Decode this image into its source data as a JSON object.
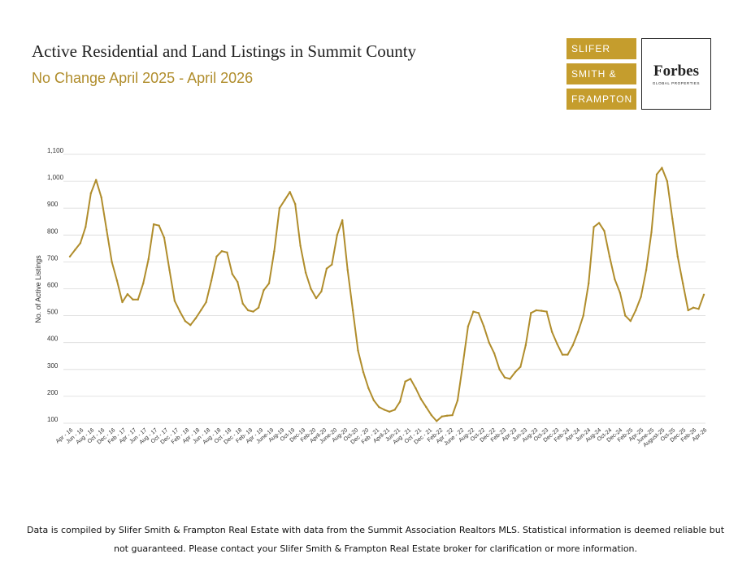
{
  "header": {
    "title": "Active Residential and Land Listings in Summit County",
    "subtitle": "No Change April 2025 - April 2026"
  },
  "brand": {
    "line1": "SLIFER",
    "line2": "SMITH &",
    "line3": "FRAMPTON",
    "forbes_name": "Forbes",
    "forbes_sub": "GLOBAL PROPERTIES",
    "gold_color": "#c59d2d"
  },
  "chart_data": {
    "type": "line",
    "title": "Active Residential and Land Listings in Summit County",
    "xlabel": "",
    "ylabel": "No. of Active Listings",
    "ylim": [
      100,
      1100
    ],
    "ytick_labels": [
      "100",
      "200",
      "300",
      "400",
      "500",
      "600",
      "700",
      "800",
      "900",
      "1,000",
      "1,100"
    ],
    "line_color": "#b08d2c",
    "grid": true,
    "legend": "none",
    "x_tick_labels": [
      "Apr - 16",
      "Jun - 16",
      "Aug - 16",
      "Oct - 16",
      "Dec - 16",
      "Feb - 17",
      "Apr - 17",
      "Jun - 17",
      "Aug - 17",
      "Oct - 17",
      "Dec - 17",
      "Feb - 18",
      "Apr - 18",
      "Jun - 18",
      "Aug - 18",
      "Oct - 18",
      "Dec - 18",
      "Feb- 19",
      "Apr - 19",
      "June-19",
      "Aug-19",
      "Oct-19",
      "Dec-19",
      "Feb-20",
      "April-20",
      "June-20",
      "Aug-20",
      "Oct-20",
      "Dec - 20",
      "Feb - 21",
      "April-21",
      "Jun-21",
      "Aug - 21",
      "Oct - 21",
      "Dec - 21",
      "Feb-22",
      "Apr - 22",
      "June - 22",
      "Aug-22",
      "Oct-22",
      "Dec-22",
      "Feb-23",
      "Apr-23",
      "Jun-23",
      "Aug-23",
      "Oct-23",
      "Dec-23",
      "Feb-24",
      "Apr-24",
      "Jun-24",
      "Aug-24",
      "Oct-24",
      "Dec-24",
      "Feb-25",
      "Apr-25",
      "June-25",
      "August-25",
      "Oct-25",
      "Dec-25",
      "Feb-26",
      "Apr-26"
    ],
    "series": [
      {
        "name": "Active Listings",
        "values": [
          720,
          745,
          770,
          830,
          955,
          1005,
          940,
          820,
          700,
          630,
          550,
          580,
          560,
          560,
          620,
          710,
          840,
          835,
          790,
          670,
          555,
          515,
          480,
          465,
          490,
          520,
          550,
          630,
          720,
          740,
          735,
          655,
          625,
          545,
          520,
          515,
          530,
          595,
          620,
          740,
          900,
          930,
          960,
          915,
          760,
          660,
          600,
          565,
          590,
          675,
          690,
          800,
          855,
          670,
          520,
          370,
          290,
          230,
          185,
          160,
          150,
          143,
          150,
          180,
          255,
          265,
          230,
          190,
          160,
          130,
          108,
          125,
          128,
          130,
          185,
          320,
          460,
          515,
          510,
          460,
          400,
          360,
          300,
          270,
          265,
          290,
          310,
          390,
          510,
          520,
          518,
          515,
          440,
          395,
          355,
          355,
          390,
          440,
          500,
          620,
          830,
          845,
          815,
          720,
          635,
          585,
          500,
          480,
          520,
          570,
          670,
          810,
          1025,
          1050,
          1000,
          860,
          720,
          620,
          520,
          530,
          525,
          578
        ]
      }
    ]
  },
  "footer": {
    "line1": "Data is compiled by Slifer Smith & Frampton Real Estate with data from the Summit Association Realtors MLS. Statistical information is deemed reliable but",
    "line2": "not guaranteed. Please contact your Slifer Smith & Frampton Real Estate broker for clarification or more information."
  }
}
